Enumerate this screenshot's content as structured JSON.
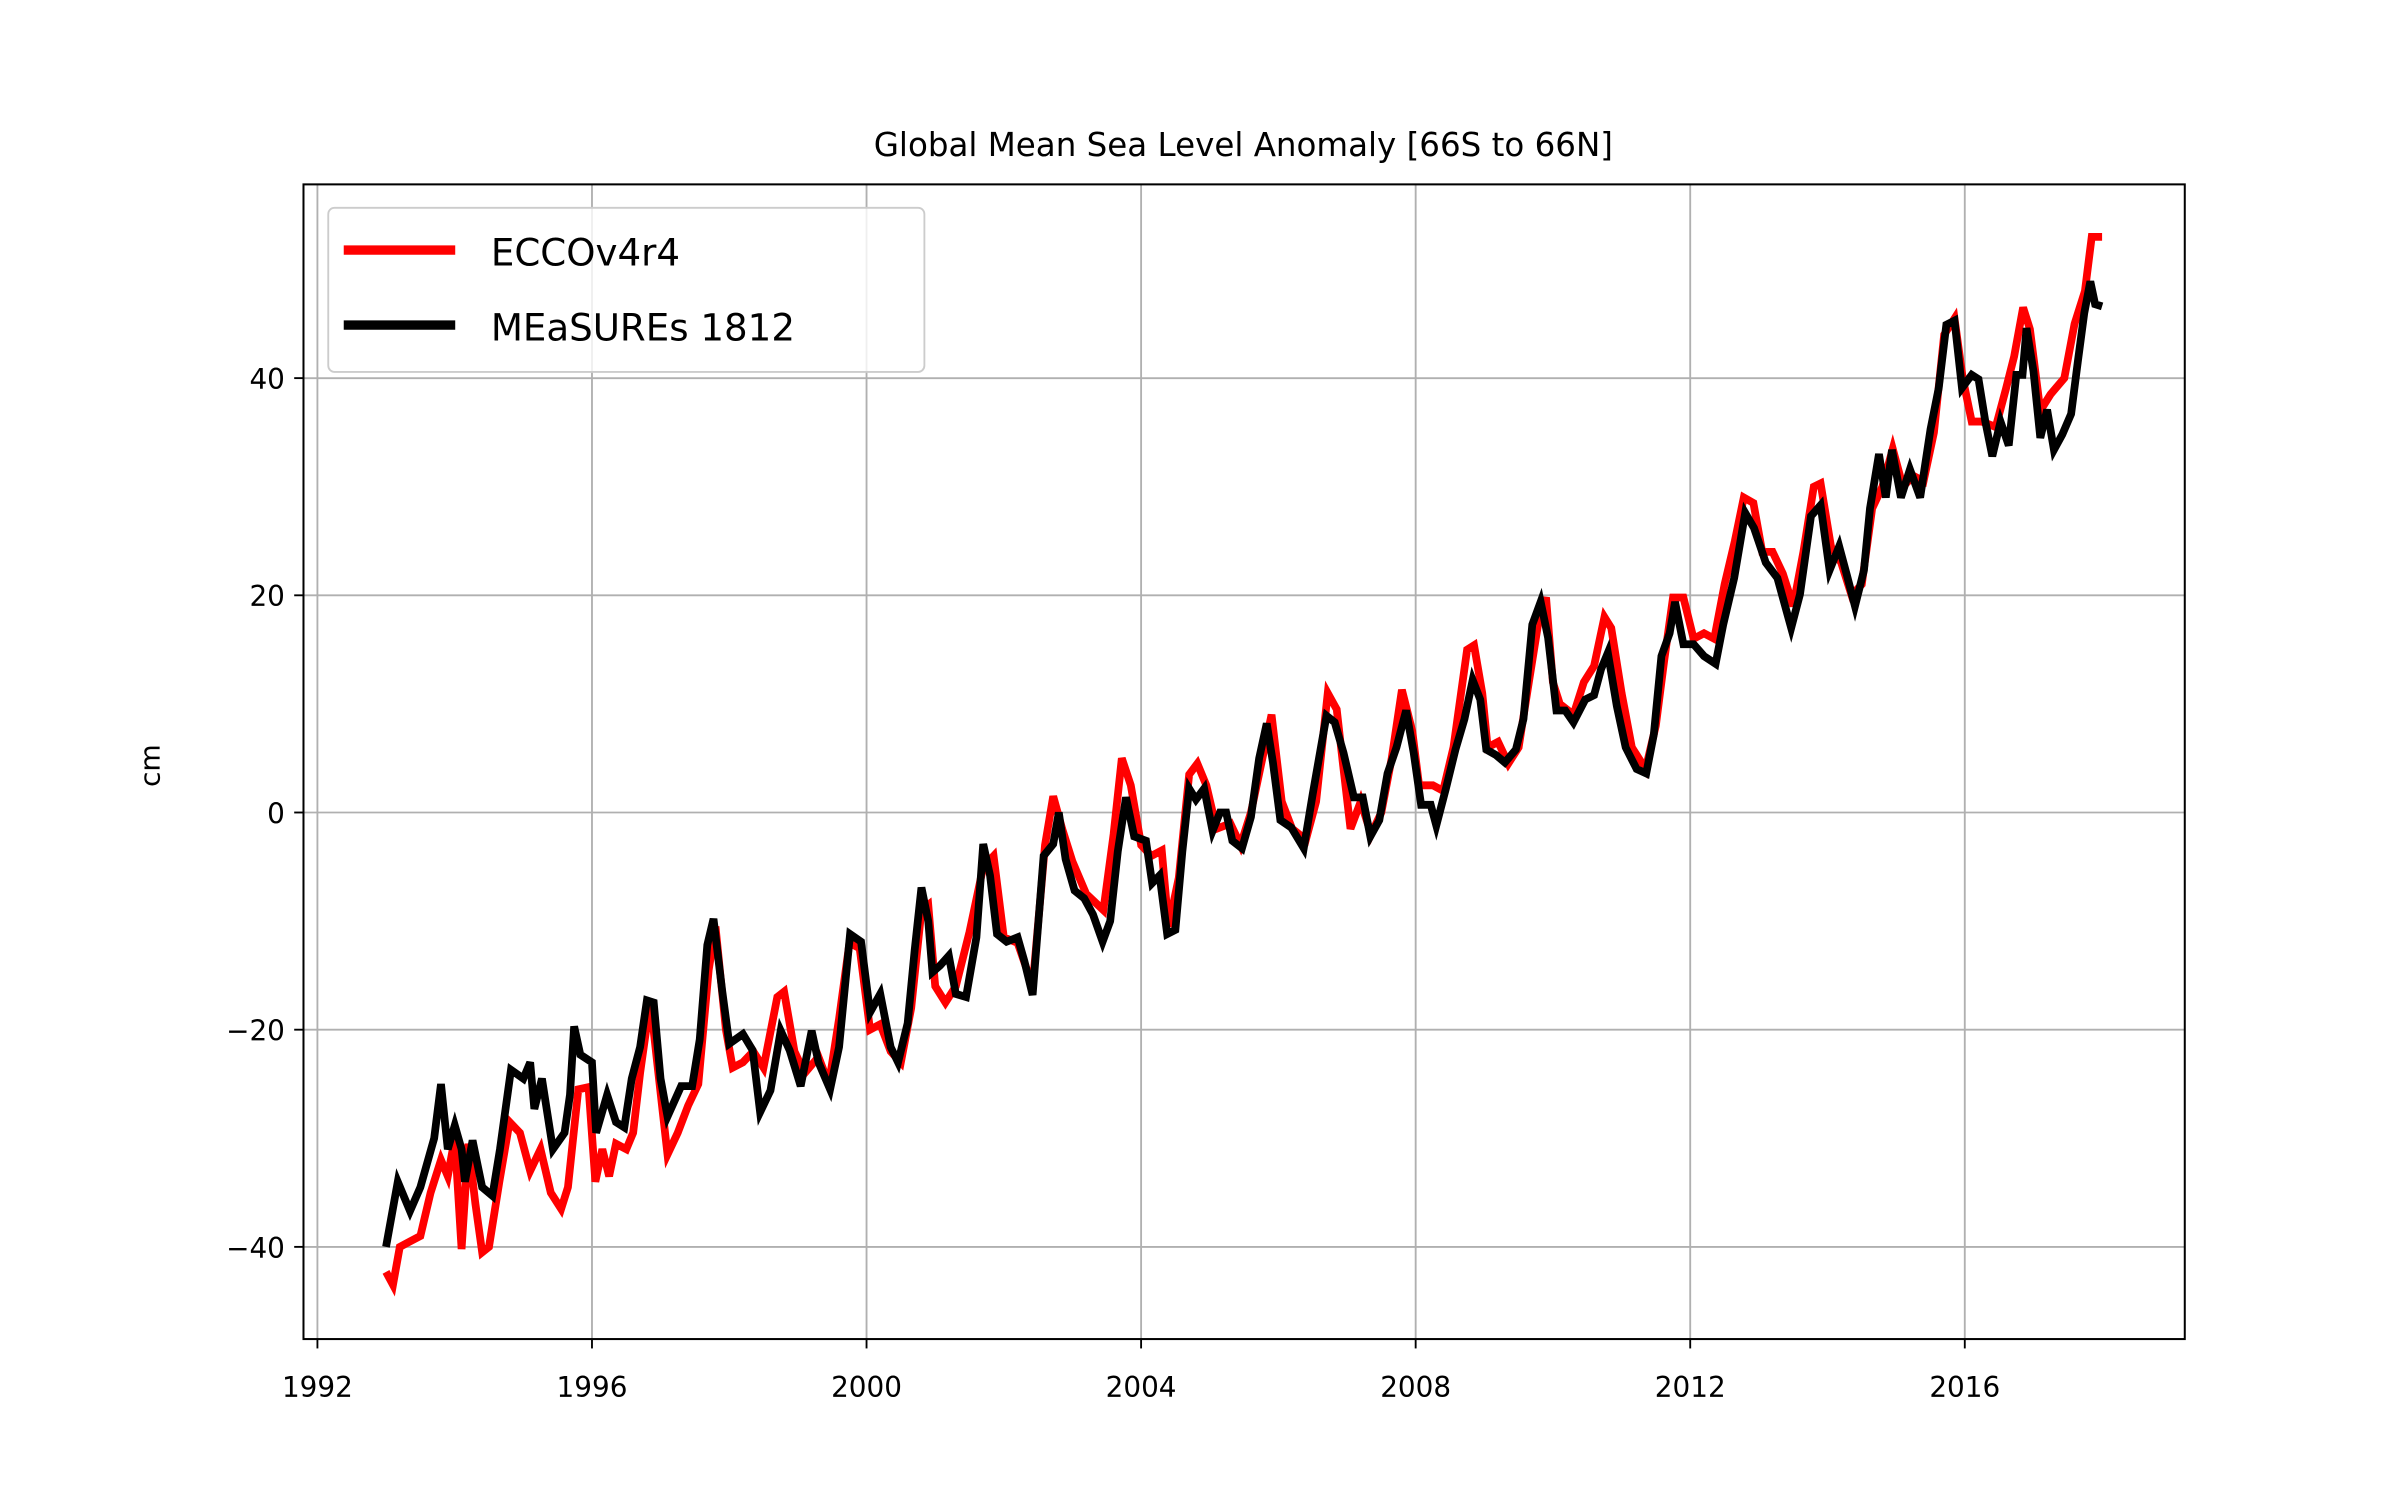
{
  "chart_data": {
    "type": "line",
    "title": "Global Mean Sea Level Anomaly [66S to 66N]",
    "xlabel": "",
    "ylabel": "cm",
    "xlim": [
      1991.8,
      2019.2
    ],
    "ylim": [
      -48.5,
      58
    ],
    "xticks": [
      1992,
      1996,
      2000,
      2004,
      2008,
      2012,
      2016
    ],
    "xtick_labels": [
      "1992",
      "1996",
      "2000",
      "2004",
      "2008",
      "2012",
      "2016"
    ],
    "yticks": [
      -40,
      -20,
      0,
      20,
      40
    ],
    "ytick_labels": [
      "−40",
      "−20",
      "0",
      "20",
      "40"
    ],
    "grid": true,
    "legend_position": "upper-left",
    "series": [
      {
        "name": "ECCOv4r4",
        "color": "#ff0000",
        "x": [
          1993.0,
          1993.1,
          1993.2,
          1993.35,
          1993.5,
          1993.65,
          1993.8,
          1993.9,
          1994.0,
          1994.1,
          1994.2,
          1994.3,
          1994.4,
          1994.5,
          1994.65,
          1994.8,
          1994.95,
          1995.1,
          1995.25,
          1995.4,
          1995.55,
          1995.65,
          1995.8,
          1995.95,
          1996.05,
          1996.15,
          1996.25,
          1996.35,
          1996.5,
          1996.6,
          1996.7,
          1996.85,
          1996.95,
          1997.1,
          1997.25,
          1997.4,
          1997.55,
          1997.7,
          1997.8,
          1997.95,
          1998.05,
          1998.2,
          1998.35,
          1998.5,
          1998.7,
          1998.8,
          1998.95,
          1999.1,
          1999.3,
          1999.45,
          1999.6,
          1999.75,
          1999.9,
          2000.05,
          2000.2,
          2000.35,
          2000.5,
          2000.65,
          2000.8,
          2000.9,
          2001.0,
          2001.15,
          2001.3,
          2001.5,
          2001.7,
          2001.85,
          2002.0,
          2002.2,
          2002.42,
          2002.6,
          2002.72,
          2002.85,
          2003.0,
          2003.2,
          2003.45,
          2003.6,
          2003.72,
          2003.85,
          2004.0,
          2004.15,
          2004.3,
          2004.4,
          2004.55,
          2004.7,
          2004.82,
          2004.95,
          2005.1,
          2005.3,
          2005.45,
          2005.6,
          2005.8,
          2005.9,
          2006.05,
          2006.2,
          2006.4,
          2006.55,
          2006.72,
          2006.85,
          2006.95,
          2007.05,
          2007.2,
          2007.35,
          2007.5,
          2007.65,
          2007.8,
          2007.95,
          2008.05,
          2008.25,
          2008.4,
          2008.55,
          2008.75,
          2008.85,
          2008.97,
          2009.05,
          2009.2,
          2009.35,
          2009.5,
          2009.65,
          2009.8,
          2009.9,
          2010.0,
          2010.1,
          2010.3,
          2010.45,
          2010.6,
          2010.75,
          2010.85,
          2011.0,
          2011.15,
          2011.35,
          2011.5,
          2011.62,
          2011.75,
          2011.9,
          2012.05,
          2012.2,
          2012.35,
          2012.5,
          2012.65,
          2012.78,
          2012.92,
          2013.05,
          2013.2,
          2013.35,
          2013.5,
          2013.65,
          2013.8,
          2013.9,
          2014.05,
          2014.2,
          2014.35,
          2014.5,
          2014.65,
          2014.8,
          2014.95,
          2015.1,
          2015.25,
          2015.4,
          2015.55,
          2015.7,
          2015.85,
          2015.97,
          2016.1,
          2016.25,
          2016.45,
          2016.6,
          2016.72,
          2016.85,
          2016.95,
          2017.1,
          2017.25,
          2017.45,
          2017.6,
          2017.75,
          2017.85,
          2018.0
        ],
        "y": [
          -42.3,
          -43.5,
          -40,
          -39.5,
          -39,
          -35,
          -32,
          -33.5,
          -30,
          -40.2,
          -30.5,
          -36,
          -40.5,
          -40,
          -34,
          -28.5,
          -29.5,
          -33,
          -31,
          -35,
          -36.5,
          -34.5,
          -25.5,
          -25.3,
          -34,
          -31,
          -33.5,
          -30.5,
          -31,
          -29.5,
          -24,
          -17.3,
          -23,
          -31.5,
          -29.5,
          -27,
          -25,
          -14.5,
          -10.5,
          -20,
          -23.5,
          -23,
          -22,
          -23.5,
          -17,
          -16.5,
          -22,
          -24,
          -22.5,
          -25,
          -19,
          -12,
          -12.5,
          -20,
          -19.5,
          -22,
          -23,
          -18,
          -9,
          -8.5,
          -16,
          -17.5,
          -16,
          -11,
          -5,
          -4,
          -11.5,
          -12,
          -16,
          -3,
          1.5,
          -1.5,
          -4.5,
          -7.5,
          -9,
          -2,
          5,
          2.5,
          -3,
          -4,
          -3.5,
          -10.5,
          -6,
          3.5,
          4.5,
          2.5,
          -1.5,
          -1,
          -3,
          0,
          6,
          9,
          1,
          -1.5,
          -2.5,
          1,
          11,
          9.5,
          4,
          -1.5,
          1,
          -2,
          0,
          5,
          11.3,
          7.5,
          2.5,
          2.5,
          2,
          6,
          15,
          15.4,
          11,
          6,
          6.5,
          4.5,
          6,
          12,
          18,
          19.8,
          12,
          10,
          9,
          12,
          13.5,
          18,
          17,
          11,
          6,
          4,
          8,
          14,
          19.8,
          19.8,
          16,
          16.5,
          16,
          21,
          25,
          29,
          28.5,
          24,
          24,
          22,
          19,
          24,
          30,
          30.3,
          24.5,
          23,
          20,
          21,
          28,
          30,
          33.5,
          30,
          31,
          30.5,
          35,
          44,
          45.5,
          40,
          36,
          36,
          35.5,
          39,
          42,
          46.5,
          44.5,
          37,
          38.5,
          40,
          45,
          48,
          53,
          53
        ]
      },
      {
        "name": "MEaSUREs 1812",
        "color": "#000000",
        "x": [
          1993.0,
          1993.17,
          1993.35,
          1993.5,
          1993.7,
          1993.8,
          1993.9,
          1994.0,
          1994.1,
          1994.15,
          1994.26,
          1994.4,
          1994.55,
          1994.66,
          1994.82,
          1995.0,
          1995.1,
          1995.16,
          1995.27,
          1995.43,
          1995.6,
          1995.68,
          1995.74,
          1995.83,
          1996.0,
          1996.06,
          1996.22,
          1996.35,
          1996.47,
          1996.58,
          1996.7,
          1996.8,
          1996.9,
          1997.0,
          1997.1,
          1997.3,
          1997.46,
          1997.57,
          1997.68,
          1997.77,
          1997.9,
          1998.0,
          1998.2,
          1998.34,
          1998.45,
          1998.6,
          1998.75,
          1998.88,
          1999.04,
          1999.2,
          1999.3,
          1999.47,
          1999.6,
          1999.76,
          1999.92,
          2000.05,
          2000.2,
          2000.35,
          2000.46,
          2000.6,
          2000.7,
          2000.8,
          2000.9,
          2000.96,
          2001.07,
          2001.2,
          2001.3,
          2001.45,
          2001.6,
          2001.7,
          2001.8,
          2001.9,
          2002.04,
          2002.2,
          2002.3,
          2002.42,
          2002.58,
          2002.72,
          2002.8,
          2002.9,
          2003.03,
          2003.17,
          2003.3,
          2003.44,
          2003.55,
          2003.66,
          2003.78,
          2003.9,
          2004.07,
          2004.16,
          2004.27,
          2004.38,
          2004.5,
          2004.6,
          2004.7,
          2004.8,
          2004.92,
          2005.04,
          2005.15,
          2005.24,
          2005.33,
          2005.47,
          2005.6,
          2005.72,
          2005.83,
          2005.92,
          2006.03,
          2006.19,
          2006.37,
          2006.5,
          2006.62,
          2006.7,
          2006.82,
          2006.95,
          2007.1,
          2007.23,
          2007.34,
          2007.47,
          2007.59,
          2007.72,
          2007.86,
          2007.97,
          2008.08,
          2008.22,
          2008.3,
          2008.44,
          2008.58,
          2008.71,
          2008.83,
          2008.94,
          2009.03,
          2009.17,
          2009.3,
          2009.46,
          2009.57,
          2009.7,
          2009.82,
          2009.93,
          2010.05,
          2010.18,
          2010.3,
          2010.47,
          2010.6,
          2010.7,
          2010.8,
          2010.93,
          2011.06,
          2011.22,
          2011.36,
          2011.47,
          2011.58,
          2011.7,
          2011.78,
          2011.9,
          2012.05,
          2012.2,
          2012.37,
          2012.48,
          2012.64,
          2012.8,
          2012.93,
          2013.1,
          2013.27,
          2013.47,
          2013.6,
          2013.76,
          2013.9,
          2014.03,
          2014.17,
          2014.28,
          2014.4,
          2014.53,
          2014.62,
          2014.75,
          2014.85,
          2014.94,
          2015.07,
          2015.2,
          2015.35,
          2015.5,
          2015.62,
          2015.73,
          2015.85,
          2015.96,
          2016.1,
          2016.2,
          2016.3,
          2016.4,
          2016.52,
          2016.64,
          2016.75,
          2016.84,
          2016.9,
          2017.0,
          2017.1,
          2017.2,
          2017.3,
          2017.42,
          2017.55,
          2017.65,
          2017.74,
          2017.83,
          2017.9,
          2018.0
        ],
        "y": [
          -40,
          -34,
          -36.7,
          -34.5,
          -30,
          -25,
          -31,
          -28.8,
          -31,
          -34,
          -30.2,
          -34.5,
          -35.3,
          -31,
          -23.7,
          -24.5,
          -23,
          -27.3,
          -24.5,
          -31,
          -29.5,
          -26,
          -19.7,
          -22.3,
          -23,
          -29.5,
          -26,
          -28.5,
          -29,
          -24.5,
          -21.6,
          -17.3,
          -17.5,
          -24.5,
          -28,
          -25.2,
          -25.2,
          -20.9,
          -12.2,
          -9.8,
          -16.5,
          -21.3,
          -20.4,
          -21.9,
          -27.6,
          -25.6,
          -20.1,
          -21.9,
          -25.2,
          -20.1,
          -23,
          -25.5,
          -21.6,
          -11.2,
          -11.9,
          -18.4,
          -16.7,
          -21.6,
          -23,
          -19.4,
          -12.7,
          -6.9,
          -10,
          -14.7,
          -14.1,
          -13.2,
          -16.7,
          -17,
          -11.5,
          -2.9,
          -5.8,
          -11.2,
          -11.9,
          -11.5,
          -13.7,
          -16.8,
          -4,
          -2.9,
          0,
          -4.3,
          -7.2,
          -7.9,
          -9.4,
          -11.9,
          -10,
          -3.6,
          1.4,
          -2.2,
          -2.6,
          -6.5,
          -5.8,
          -11.2,
          -10.8,
          -3.6,
          2.2,
          1.2,
          2.2,
          -1.7,
          0,
          0,
          -2.6,
          -3.3,
          -0.4,
          5,
          8.2,
          4.6,
          -0.7,
          -1.4,
          -3.3,
          1.7,
          6,
          8.9,
          8.3,
          5.5,
          1.4,
          1.4,
          -2.2,
          -0.7,
          3.6,
          6,
          9.4,
          5.5,
          0.7,
          0.7,
          -1.2,
          2.2,
          5.8,
          8.6,
          12.2,
          10.4,
          5.8,
          5.3,
          4.6,
          5.8,
          8.6,
          17.3,
          19.4,
          16.1,
          9.4,
          9.4,
          8.3,
          10.4,
          10.8,
          13.2,
          14.7,
          9.8,
          6,
          4,
          3.6,
          7.2,
          14.4,
          16.5,
          19.4,
          15.5,
          15.5,
          14.4,
          13.7,
          17.3,
          21.6,
          27.6,
          26.2,
          23,
          21.6,
          17,
          20.1,
          27.3,
          28.3,
          22.3,
          24.5,
          21.9,
          19,
          22.3,
          28,
          33,
          29,
          33.4,
          29,
          31.6,
          29,
          35.3,
          39.1,
          44.9,
          45.3,
          39.1,
          40.3,
          39.9,
          36,
          32.8,
          36,
          33.8,
          40.3,
          40.3,
          44.6,
          40.6,
          34.5,
          37.1,
          33.4,
          34.8,
          36.7,
          41.7,
          46,
          48.9,
          46.8,
          46.6
        ]
      }
    ]
  }
}
